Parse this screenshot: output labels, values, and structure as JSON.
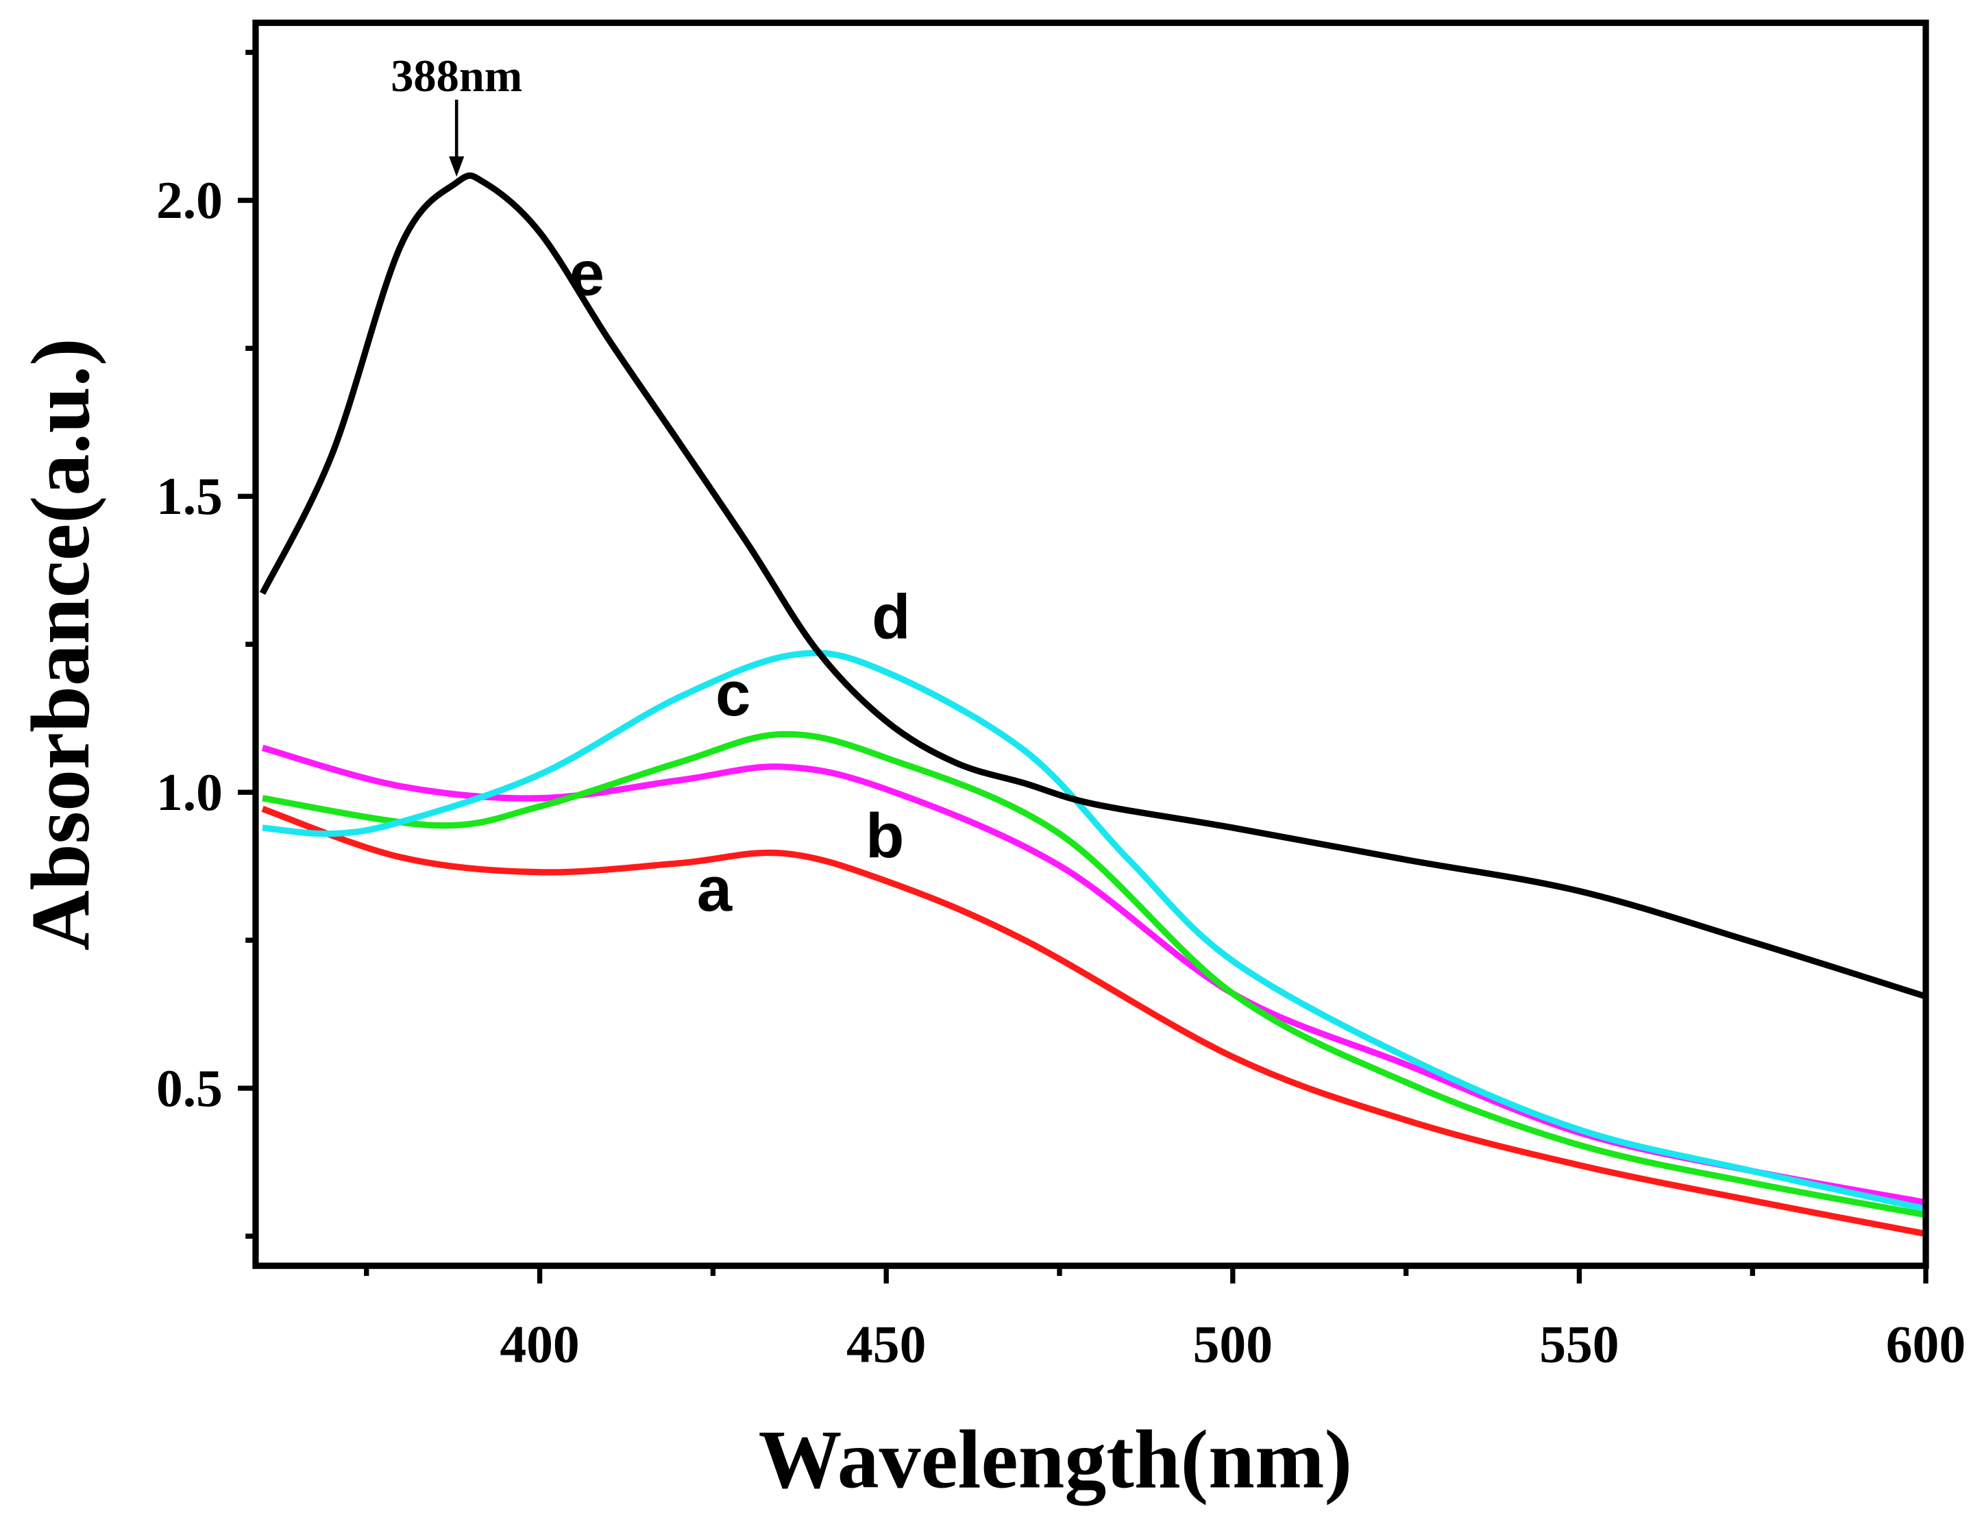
{
  "chart_data": {
    "type": "line",
    "title": "",
    "xlabel": "Wavelength(nm)",
    "ylabel": "Absorbance(a.u.)",
    "xlim": [
      359,
      600
    ],
    "ylim": [
      0.2,
      2.3
    ],
    "xticks": [
      400,
      450,
      500,
      550,
      600
    ],
    "xtick_labels": [
      "400",
      "450",
      "500",
      "550",
      "600"
    ],
    "xminor": [
      375,
      425,
      475,
      525,
      575
    ],
    "yticks": [
      0.5,
      1.0,
      1.5,
      2.0
    ],
    "ytick_labels": [
      "0.5",
      "1.0",
      "1.5",
      "2.0"
    ],
    "yminor": [
      0.25,
      0.75,
      1.25,
      1.75,
      2.25
    ],
    "grid": false,
    "legend": "none",
    "series": [
      {
        "name": "a",
        "color": "#ff1a1a",
        "x": [
          360,
          380,
          400,
          420,
          435,
          450,
          470,
          500,
          525,
          550,
          575,
          600
        ],
        "y": [
          0.972,
          0.89,
          0.865,
          0.88,
          0.897,
          0.85,
          0.75,
          0.553,
          0.446,
          0.37,
          0.31,
          0.254
        ]
      },
      {
        "name": "b",
        "color": "#ff1aff",
        "x": [
          360,
          380,
          400,
          420,
          435,
          450,
          475,
          500,
          525,
          550,
          575,
          600
        ],
        "y": [
          1.075,
          1.01,
          0.99,
          1.02,
          1.043,
          1.005,
          0.876,
          0.66,
          0.54,
          0.425,
          0.36,
          0.307
        ]
      },
      {
        "name": "c",
        "color": "#1ae61a",
        "x": [
          360,
          385,
          400,
          420,
          435,
          450,
          475,
          500,
          525,
          550,
          575,
          600
        ],
        "y": [
          0.99,
          0.944,
          0.976,
          1.05,
          1.098,
          1.058,
          0.93,
          0.66,
          0.51,
          0.404,
          0.34,
          0.286
        ]
      },
      {
        "name": "d",
        "color": "#1ae6f0",
        "x": [
          360,
          370,
          380,
          400,
          420,
          437,
          450,
          470,
          485,
          500,
          525,
          550,
          575,
          600
        ],
        "y": [
          0.94,
          0.93,
          0.95,
          1.03,
          1.16,
          1.233,
          1.203,
          1.07,
          0.886,
          0.715,
          0.553,
          0.43,
          0.36,
          0.296
        ]
      },
      {
        "name": "e",
        "color": "#000000",
        "x": [
          360,
          370,
          380,
          388,
          392,
          400,
          410,
          420,
          430,
          440,
          450,
          460,
          470,
          480,
          500,
          525,
          550,
          575,
          600
        ],
        "y": [
          1.336,
          1.57,
          1.925,
          2.03,
          2.03,
          1.946,
          1.764,
          1.593,
          1.42,
          1.24,
          1.12,
          1.05,
          1.015,
          0.98,
          0.94,
          0.886,
          0.833,
          0.747,
          0.655
        ]
      }
    ],
    "curve_labels": [
      {
        "text": "a",
        "x": 425.2,
        "y": 0.8
      },
      {
        "text": "b",
        "x": 449.8,
        "y": 0.89
      },
      {
        "text": "c",
        "x": 427.9,
        "y": 1.13
      },
      {
        "text": "d",
        "x": 450.7,
        "y": 1.26
      },
      {
        "text": "e",
        "x": 406.8,
        "y": 1.84
      }
    ],
    "annotations": [
      {
        "text": "388nm",
        "x": 388,
        "y": 2.21,
        "arrow_from": 2.17,
        "arrow_to": 2.04
      }
    ]
  }
}
